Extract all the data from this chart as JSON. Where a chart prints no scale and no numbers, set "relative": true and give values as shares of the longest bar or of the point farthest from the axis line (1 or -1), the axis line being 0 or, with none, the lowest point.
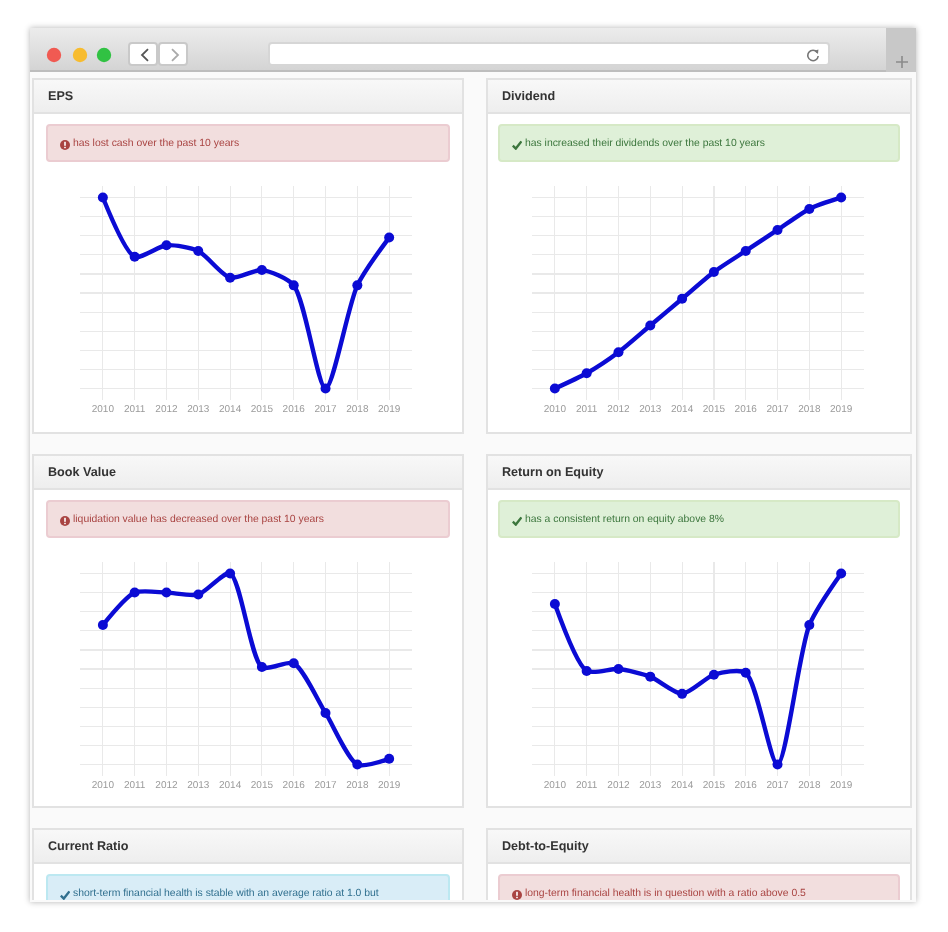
{
  "chart_data": [
    {
      "type": "line",
      "title": "EPS",
      "annotations": [
        "has lost cash over the past 10 years"
      ],
      "categories": [
        "2010",
        "2011",
        "2012",
        "2013",
        "2014",
        "2015",
        "2016",
        "2017",
        "2018",
        "2019"
      ],
      "values": [
        1,
        0.69,
        0.75,
        0.72,
        0.58,
        0.62,
        0.54,
        0,
        0.54,
        0.79
      ],
      "color": "#0b0bd4",
      "relative": true,
      "grid": true,
      "marker": "circle"
    },
    {
      "type": "line",
      "title": "Dividend",
      "annotations": [
        "has increased their dividends over the past 10 years"
      ],
      "categories": [
        "2010",
        "2011",
        "2012",
        "2013",
        "2014",
        "2015",
        "2016",
        "2017",
        "2018",
        "2019"
      ],
      "values": [
        0,
        0.08,
        0.19,
        0.33,
        0.47,
        0.61,
        0.72,
        0.83,
        0.94,
        1
      ],
      "color": "#0b0bd4",
      "relative": true,
      "grid": true,
      "marker": "circle"
    },
    {
      "type": "line",
      "title": "Book Value",
      "annotations": [
        "liquidation value has decreased over the past 10 years"
      ],
      "categories": [
        "2010",
        "2011",
        "2012",
        "2013",
        "2014",
        "2015",
        "2016",
        "2017",
        "2018",
        "2019"
      ],
      "values": [
        0.73,
        0.9,
        0.9,
        0.89,
        1,
        0.51,
        0.53,
        0.27,
        0,
        0.03
      ],
      "color": "#0b0bd4",
      "relative": true,
      "grid": true,
      "marker": "circle"
    },
    {
      "type": "line",
      "title": "Return on Equity",
      "annotations": [
        "has a consistent return on equity above 8%"
      ],
      "categories": [
        "2010",
        "2011",
        "2012",
        "2013",
        "2014",
        "2015",
        "2016",
        "2017",
        "2018",
        "2019"
      ],
      "values": [
        0.84,
        0.49,
        0.5,
        0.46,
        0.37,
        0.47,
        0.48,
        0,
        0.73,
        1
      ],
      "color": "#0b0bd4",
      "relative": true,
      "grid": true,
      "marker": "circle"
    },
    {
      "type": "other",
      "title": "Current Ratio",
      "annotations": [
        "short-term financial health is stable with an average ratio at 1.0 but"
      ]
    },
    {
      "type": "other",
      "title": "Debt-to-Equity",
      "annotations": [
        "long-term financial health is in question with a ratio above 0.5"
      ]
    }
  ]
}
